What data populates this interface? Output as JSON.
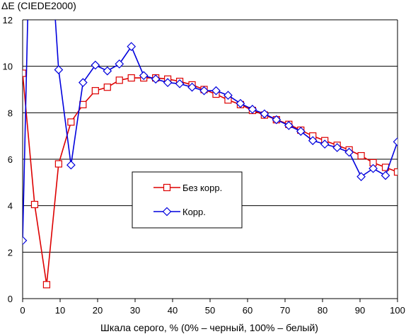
{
  "chart_data": {
    "type": "line",
    "title": "",
    "ylabel": "ΔE (CIEDE2000)",
    "xlabel": "Шкала серого, % (0% – черный, 100% – белый)",
    "xlim": [
      0,
      100
    ],
    "ylim": [
      0,
      12
    ],
    "xticks": [
      "0",
      "10",
      "20",
      "30",
      "40",
      "50",
      "60",
      "70",
      "80",
      "90",
      "100"
    ],
    "yticks": [
      "0",
      "2",
      "4",
      "6",
      "8",
      "10",
      "12"
    ],
    "grid": "horizontal",
    "legend_position": "center",
    "series": [
      {
        "name": "Без корр.",
        "color": "#dd0000",
        "marker": "square",
        "points": [
          [
            0,
            9.7
          ],
          [
            3.2,
            4.05
          ],
          [
            6.4,
            0.6
          ],
          [
            9.6,
            5.8
          ],
          [
            12.9,
            7.6
          ],
          [
            16.1,
            8.35
          ],
          [
            19.4,
            8.95
          ],
          [
            22.6,
            9.1
          ],
          [
            25.8,
            9.4
          ],
          [
            29.0,
            9.5
          ],
          [
            32.3,
            9.5
          ],
          [
            35.5,
            9.5
          ],
          [
            38.7,
            9.45
          ],
          [
            41.9,
            9.35
          ],
          [
            45.2,
            9.2
          ],
          [
            48.4,
            9.0
          ],
          [
            51.6,
            8.8
          ],
          [
            54.8,
            8.55
          ],
          [
            58.1,
            8.35
          ],
          [
            61.3,
            8.1
          ],
          [
            64.5,
            7.9
          ],
          [
            67.7,
            7.7
          ],
          [
            71.0,
            7.5
          ],
          [
            74.2,
            7.25
          ],
          [
            77.4,
            7.0
          ],
          [
            80.6,
            6.8
          ],
          [
            83.9,
            6.6
          ],
          [
            87.1,
            6.4
          ],
          [
            90.3,
            6.15
          ],
          [
            93.5,
            5.85
          ],
          [
            96.8,
            5.65
          ],
          [
            100,
            5.45
          ]
        ]
      },
      {
        "name": "Корр.",
        "color": "#0000dd",
        "marker": "diamond",
        "points": [
          [
            0,
            2.5
          ],
          [
            1.6,
            13.8
          ],
          [
            8.0,
            13.8
          ],
          [
            9.6,
            9.85
          ],
          [
            12.9,
            5.75
          ],
          [
            16.1,
            9.3
          ],
          [
            19.4,
            10.05
          ],
          [
            22.6,
            9.8
          ],
          [
            25.8,
            10.1
          ],
          [
            29.0,
            10.85
          ],
          [
            32.3,
            9.6
          ],
          [
            35.5,
            9.45
          ],
          [
            38.7,
            9.3
          ],
          [
            41.9,
            9.25
          ],
          [
            45.2,
            9.1
          ],
          [
            48.4,
            8.95
          ],
          [
            51.6,
            8.95
          ],
          [
            54.8,
            8.75
          ],
          [
            58.1,
            8.4
          ],
          [
            61.3,
            8.15
          ],
          [
            64.5,
            7.95
          ],
          [
            67.7,
            7.7
          ],
          [
            71.0,
            7.45
          ],
          [
            74.2,
            7.2
          ],
          [
            77.4,
            6.8
          ],
          [
            80.6,
            6.65
          ],
          [
            83.9,
            6.5
          ],
          [
            87.1,
            6.3
          ],
          [
            90.3,
            5.25
          ],
          [
            93.5,
            5.6
          ],
          [
            96.8,
            5.3
          ],
          [
            100,
            6.75
          ]
        ]
      }
    ]
  }
}
